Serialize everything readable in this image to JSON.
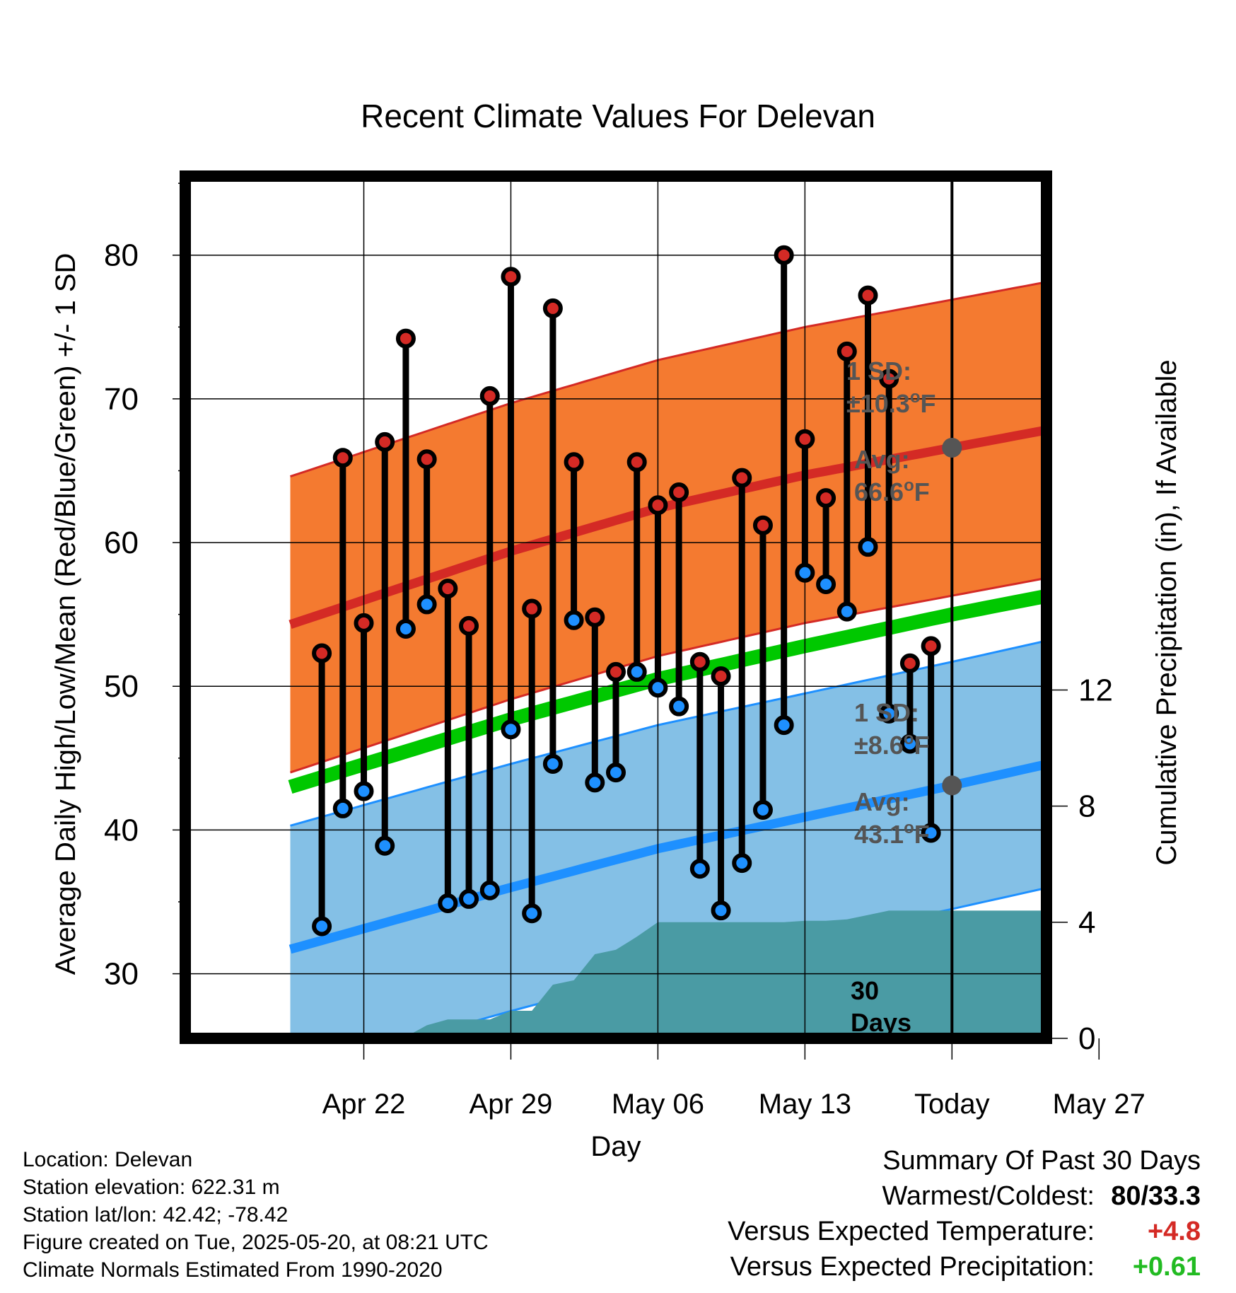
{
  "title": "Recent Climate Values For Delevan",
  "colors": {
    "high_band": "#F47A30",
    "high_line": "#D42A25",
    "low_band": "#84C0E6",
    "low_line": "#1E90FF",
    "mean_line": "#00C800",
    "precip": "#4A9BA4",
    "high_dot": "#D42A25",
    "low_dot": "#1E90FF",
    "today_dot": "#555555",
    "annotation": "#555555",
    "plus_red": "#D42A25",
    "plus_green": "#22BB22"
  },
  "chart_data": {
    "type": "line",
    "xlabel": "Day",
    "ylabel": "Average Daily High/Low/Mean (Red/Blue/Green) +/- 1 SD",
    "y2label": "Cumulative Precipitation (in), If Available",
    "ylim": [
      25.5,
      85.5
    ],
    "y2lim": [
      0,
      29.7
    ],
    "xlim": [
      -36.5,
      4.5
    ],
    "xticks": [
      {
        "x": -28,
        "label": "Apr 22"
      },
      {
        "x": -21,
        "label": "Apr 29"
      },
      {
        "x": -14,
        "label": "May 06"
      },
      {
        "x": -7,
        "label": "May 13"
      },
      {
        "x": 0,
        "label": "Today"
      },
      {
        "x": 7,
        "label": "May 27"
      }
    ],
    "yticks": [
      30,
      40,
      50,
      60,
      70,
      80
    ],
    "y2ticks": [
      0,
      4,
      8,
      12
    ],
    "grid": true,
    "series": [
      {
        "name": "High",
        "x": [
          -30,
          -29,
          -28,
          -27,
          -26,
          -25,
          -24,
          -23,
          -22,
          -21,
          -20,
          -19,
          -18,
          -17,
          -16,
          -15,
          -14,
          -13,
          -12,
          -11,
          -10,
          -9,
          -8,
          -7,
          -6,
          -5,
          -4,
          -3,
          -2,
          -1
        ],
        "values": [
          52.3,
          65.9,
          54.4,
          67.0,
          74.2,
          65.8,
          56.8,
          54.2,
          70.2,
          78.5,
          55.4,
          76.3,
          65.6,
          54.8,
          51.0,
          65.6,
          62.6,
          63.5,
          51.7,
          50.7,
          64.5,
          61.2,
          80.0,
          67.2,
          63.1,
          73.3,
          77.2,
          71.4,
          51.6,
          52.8
        ]
      },
      {
        "name": "Low",
        "x": [
          -30,
          -29,
          -28,
          -27,
          -26,
          -25,
          -24,
          -23,
          -22,
          -21,
          -20,
          -19,
          -18,
          -17,
          -16,
          -15,
          -14,
          -13,
          -12,
          -11,
          -10,
          -9,
          -8,
          -7,
          -6,
          -5,
          -4,
          -3,
          -2,
          -1
        ],
        "values": [
          33.3,
          41.5,
          42.7,
          38.9,
          54.0,
          55.7,
          34.9,
          35.2,
          35.8,
          47.0,
          34.2,
          44.6,
          54.6,
          43.3,
          44.0,
          51.0,
          49.9,
          48.6,
          37.3,
          34.4,
          37.7,
          41.4,
          47.3,
          57.9,
          57.1,
          55.2,
          59.7,
          48.1,
          46.0,
          39.8
        ]
      },
      {
        "name": "Normal High",
        "x": [
          -31.5,
          -21,
          -14,
          -7,
          0,
          9.5
        ],
        "values": [
          54.3,
          59.4,
          62.4,
          64.7,
          66.6,
          69.2
        ]
      },
      {
        "name": "Normal Low",
        "x": [
          -31.5,
          -21,
          -14,
          -7,
          0,
          9.5
        ],
        "values": [
          31.7,
          36.0,
          38.7,
          40.9,
          43.1,
          46.2
        ]
      },
      {
        "name": "Normal Mean",
        "x": [
          -31.5,
          -21,
          -14,
          -7,
          0,
          9.5
        ],
        "values": [
          43.0,
          47.7,
          50.5,
          52.8,
          55.0,
          57.7
        ]
      },
      {
        "name": "Cumulative Precipitation",
        "x": [
          -31.5,
          -30,
          -29,
          -28,
          -27,
          -26,
          -25,
          -24,
          -23,
          -22,
          -21,
          -20,
          -19,
          -18,
          -17,
          -16,
          -15,
          -14,
          -13,
          -12,
          -11,
          -10,
          -9,
          -8,
          -7,
          -6,
          -5,
          -4,
          -3,
          -2,
          -1,
          0,
          9.5
        ],
        "values": [
          0,
          0,
          0.05,
          0.05,
          0.05,
          0.05,
          0.45,
          0.65,
          0.65,
          0.65,
          0.95,
          0.95,
          1.85,
          2.0,
          2.9,
          3.05,
          3.5,
          4.0,
          4.0,
          4.0,
          4.0,
          4.0,
          4.0,
          4.0,
          4.05,
          4.05,
          4.1,
          4.25,
          4.4,
          4.4,
          4.4,
          4.4,
          4.4
        ]
      }
    ],
    "sd_high": 10.3,
    "sd_low": 8.6,
    "today_high_avg": 66.6,
    "today_low_avg": 43.1
  },
  "annotations": {
    "high_sd_label": "1 SD:",
    "high_sd_value": "±10.3",
    "high_avg_label": "Avg:",
    "high_avg_value": "66.6",
    "low_sd_label": "1 SD:",
    "low_sd_value": "±8.6",
    "low_avg_label": "Avg:",
    "low_avg_value": "43.1",
    "unit": "F",
    "degree": "o",
    "days_count": "30",
    "days_word": "Days"
  },
  "footer": {
    "location": "Location: Delevan",
    "elevation": "Station elevation: 622.31 m",
    "latlon": "Station lat/lon: 42.42; -78.42",
    "created": "Figure created on Tue, 2025-05-20, at 08:21 UTC",
    "normals": "Climate Normals Estimated From 1990-2020"
  },
  "summary": {
    "title": "Summary Of Past 30 Days",
    "warm_label": "Warmest/Coldest:",
    "warm_value": "80/33.3",
    "temp_label": "Versus Expected Temperature:",
    "temp_value": "+4.8",
    "precip_label": "Versus Expected Precipitation:",
    "precip_value": "+0.61"
  }
}
